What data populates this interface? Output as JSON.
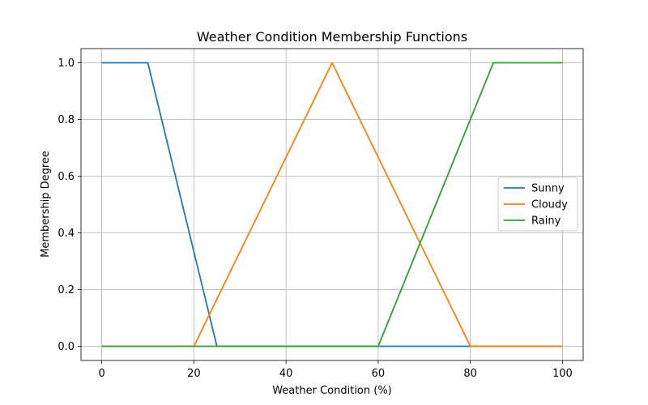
{
  "chart_data": {
    "type": "line",
    "title": "Weather Condition Membership Functions",
    "xlabel": "Weather Condition (%)",
    "ylabel": "Membership Degree",
    "xlim": [
      -4.5,
      104.5
    ],
    "ylim": [
      -0.05,
      1.05
    ],
    "xticks": [
      0,
      20,
      40,
      60,
      80,
      100
    ],
    "xtick_labels": [
      "0",
      "20",
      "40",
      "60",
      "80",
      "100"
    ],
    "yticks": [
      0.0,
      0.2,
      0.4,
      0.6,
      0.8,
      1.0
    ],
    "ytick_labels": [
      "0.0",
      "0.2",
      "0.4",
      "0.6",
      "0.8",
      "1.0"
    ],
    "grid": true,
    "legend_position": "center-right",
    "series": [
      {
        "name": "Sunny",
        "color": "#1f77b4",
        "x": [
          0,
          10,
          25,
          100
        ],
        "y": [
          1,
          1,
          0,
          0
        ]
      },
      {
        "name": "Cloudy",
        "color": "#ff7f0e",
        "x": [
          0,
          20,
          50,
          80,
          100
        ],
        "y": [
          0,
          0,
          1,
          0,
          0
        ]
      },
      {
        "name": "Rainy",
        "color": "#2ca02c",
        "x": [
          0,
          60,
          85,
          100
        ],
        "y": [
          0,
          0,
          1,
          1
        ]
      }
    ]
  }
}
